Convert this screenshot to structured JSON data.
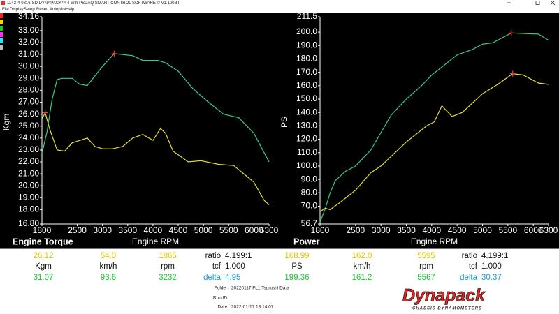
{
  "window": {
    "title": "1142-4-0816-SD DYNAPACK™ 4 with PSDAQ SMART CONTROL SOFTWARE © V1.100BT",
    "menu": [
      "File",
      "Display",
      "Setup",
      "Reset",
      "Autopilot",
      "Help"
    ]
  },
  "chart_data": [
    {
      "type": "line",
      "ylabel": "Kgm",
      "xlabel": "Engine RPM",
      "xlim": [
        1800,
        6300
      ],
      "xticks": [
        1800,
        2500,
        3000,
        3500,
        4000,
        4500,
        5000,
        5500,
        6000,
        6300
      ],
      "ylim": [
        16.8,
        34.16
      ],
      "yticks": [
        {
          "value": 16.8,
          "label": "16.80"
        },
        {
          "value": 18,
          "label": "18.00"
        },
        {
          "value": 19,
          "label": "19.00"
        },
        {
          "value": 20,
          "label": "20.00"
        },
        {
          "value": 21,
          "label": "21.00"
        },
        {
          "value": 22,
          "label": "22.00"
        },
        {
          "value": 23,
          "label": "23.00"
        },
        {
          "value": 24,
          "label": "24.00"
        },
        {
          "value": 25,
          "label": "25.00"
        },
        {
          "value": 26,
          "label": "26.00"
        },
        {
          "value": 27,
          "label": "27.00"
        },
        {
          "value": 28,
          "label": "28.00"
        },
        {
          "value": 29,
          "label": "29.00"
        },
        {
          "value": 30,
          "label": "30.00"
        },
        {
          "value": 31,
          "label": "31.00"
        },
        {
          "value": 32,
          "label": "32.00"
        },
        {
          "value": 33,
          "label": "33.00"
        },
        34.16
      ],
      "series": [
        {
          "color": "#3ec98a",
          "x": [
            1800,
            1900,
            2000,
            2100,
            2200,
            2400,
            2550,
            2700,
            2850,
            3000,
            3232,
            3400,
            3600,
            3800,
            4100,
            4250,
            4500,
            4800,
            5100,
            5400,
            5700,
            6000,
            6300
          ],
          "values": [
            22.7,
            24.5,
            27.2,
            28.9,
            29.0,
            29.0,
            28.5,
            28.4,
            29.2,
            30.0,
            31.07,
            31.0,
            30.9,
            30.5,
            30.5,
            30.3,
            29.6,
            28.1,
            27.0,
            26.0,
            25.7,
            24.4,
            22.0
          ]
        },
        {
          "color": "#e6df3a",
          "x": [
            1800,
            1865,
            1950,
            2100,
            2250,
            2400,
            2550,
            2700,
            2850,
            3000,
            3200,
            3400,
            3600,
            3800,
            4000,
            4150,
            4250,
            4400,
            4700,
            4950,
            5300,
            5600,
            5800,
            6000,
            6200,
            6300
          ],
          "values": [
            25.6,
            26.12,
            24.8,
            23.0,
            22.9,
            23.6,
            23.8,
            24.0,
            23.3,
            23.1,
            23.1,
            23.3,
            24.0,
            24.3,
            23.8,
            24.8,
            24.4,
            22.9,
            22.0,
            22.1,
            21.8,
            21.7,
            21.0,
            20.3,
            18.8,
            18.4
          ]
        }
      ],
      "markers": [
        {
          "x": 3232,
          "y": 31.07,
          "color": "#ff3b30"
        },
        {
          "x": 1865,
          "y": 26.12,
          "color": "#ff3b30"
        }
      ]
    },
    {
      "type": "line",
      "ylabel": "PS",
      "xlabel": "Engine RPM",
      "xlim": [
        1800,
        6300
      ],
      "xticks": [
        1800,
        2500,
        3000,
        3500,
        4000,
        4500,
        5000,
        5500,
        6000,
        6300
      ],
      "ylim": [
        56.7,
        211.5
      ],
      "yticks": [
        56.7,
        {
          "value": 70,
          "label": "70.0"
        },
        {
          "value": 80,
          "label": "80.0"
        },
        {
          "value": 90,
          "label": "90.0"
        },
        {
          "value": 100,
          "label": "100.0"
        },
        {
          "value": 110,
          "label": "110.0"
        },
        {
          "value": 120,
          "label": "120.0"
        },
        {
          "value": 130,
          "label": "130.0"
        },
        {
          "value": 140,
          "label": "140.0"
        },
        {
          "value": 150,
          "label": "150.0"
        },
        {
          "value": 160,
          "label": "160.0"
        },
        {
          "value": 170,
          "label": "170.0"
        },
        {
          "value": 180,
          "label": "180.0"
        },
        {
          "value": 190,
          "label": "190.0"
        },
        {
          "value": 200,
          "label": "200.0"
        },
        211.5
      ],
      "series": [
        {
          "color": "#3ec98a",
          "x": [
            1800,
            1900,
            2000,
            2100,
            2300,
            2500,
            2800,
            3000,
            3200,
            3500,
            3800,
            4000,
            4300,
            4500,
            4800,
            5000,
            5200,
            5400,
            5567,
            5800,
            6100,
            6300
          ],
          "values": [
            58,
            68,
            80,
            89,
            96,
            100,
            112,
            125,
            138,
            150,
            160,
            168,
            177,
            183,
            187,
            191,
            192,
            196,
            199.36,
            199,
            198.5,
            194
          ]
        },
        {
          "color": "#e6df3a",
          "x": [
            1800,
            1900,
            2000,
            2200,
            2500,
            2800,
            3000,
            3500,
            3900,
            4050,
            4200,
            4400,
            4600,
            4800,
            5000,
            5300,
            5595,
            5800,
            6100,
            6300
          ],
          "values": [
            66,
            68.5,
            67.5,
            73,
            82,
            95,
            100,
            118,
            130,
            133,
            145,
            137,
            140,
            147,
            154,
            161,
            168.99,
            168,
            162,
            161
          ]
        }
      ],
      "markers": [
        {
          "x": 5567,
          "y": 199.36,
          "color": "#ff3b30"
        },
        {
          "x": 5595,
          "y": 168.99,
          "color": "#ff3b30"
        }
      ]
    }
  ],
  "info": {
    "left": {
      "title": "Engine Torque",
      "xlabel": "Engine RPM",
      "rows": [
        [
          "26.12",
          "54.0",
          "1865",
          "ratio",
          "4.199:1"
        ],
        [
          "Kgm",
          "km/h",
          "rpm",
          "tcf",
          "1.000"
        ],
        [
          "31.07",
          "93.6",
          "3232",
          "delta",
          "4.95"
        ]
      ]
    },
    "right": {
      "title": "Power",
      "xlabel": "Engine RPM",
      "rows": [
        [
          "168.99",
          "162.0",
          "5595",
          "ratio",
          "4.199:1"
        ],
        [
          "PS",
          "km/h",
          "rpm",
          "tcf",
          "1.000"
        ],
        [
          "199.36",
          "161.2",
          "5567",
          "delta",
          "30.37"
        ]
      ]
    },
    "run": {
      "folder_label": "Folder:",
      "folder": "20220117 FL1 Tsurushi Data",
      "run_label": "Run ID:",
      "date_label": "Date:",
      "date": "2022-01-17 13:14:07"
    }
  },
  "logo": {
    "name": "Dynapack",
    "tagline": "CHASSIS DYNAMOMETERS"
  }
}
